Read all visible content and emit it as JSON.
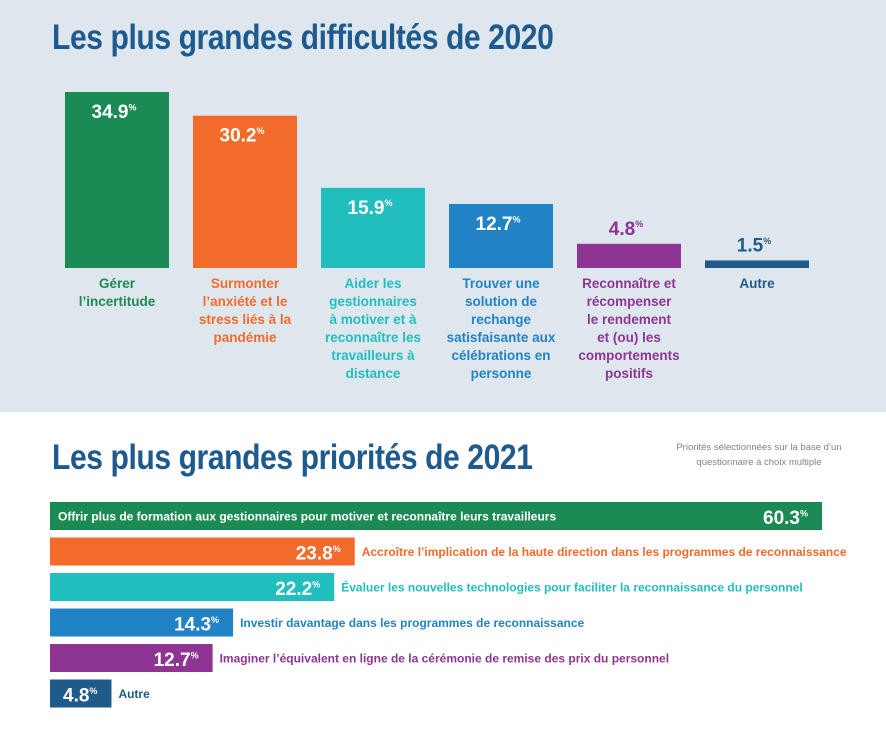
{
  "colors": {
    "green": "#1c8a55",
    "orange": "#f26b2a",
    "teal": "#22bdbd",
    "blue": "#2183c4",
    "purple": "#8e3594",
    "navy": "#1f5b8a",
    "title": "#1e5a8e"
  },
  "chart_data": [
    {
      "type": "bar",
      "orientation": "vertical",
      "title": "Les plus grandes difficultés de 2020",
      "unit": "%",
      "categories": [
        [
          "Gérer",
          "l’incertitude"
        ],
        [
          "Surmonter",
          "l’anxiété et le",
          "stress liés à la",
          "pandémie"
        ],
        [
          "Aider les",
          "gestionnaires",
          "à motiver et à",
          "reconnaître les",
          "travailleurs à",
          "distance"
        ],
        [
          "Trouver une",
          "solution de",
          "rechange",
          "satisfaisante aux",
          "célébrations en",
          "personne"
        ],
        [
          "Reconnaître et",
          "récompenser",
          "le rendement",
          "et (ou) les",
          "comportements",
          "positifs"
        ],
        [
          "Autre"
        ]
      ],
      "values": [
        34.9,
        30.2,
        15.9,
        12.7,
        4.8,
        1.5
      ],
      "colors": [
        "green",
        "orange",
        "teal",
        "blue",
        "purple",
        "navy"
      ]
    },
    {
      "type": "bar",
      "orientation": "horizontal",
      "title": "Les plus grandes priorités de 2021",
      "subtitle": "Priorités sélectionnées sur la base d’un questionnaire à choix multiple",
      "unit": "%",
      "categories": [
        "Offrir plus de formation aux gestionnaires pour motiver et reconnaître leurs travailleurs",
        "Accroître l’implication de la haute direction dans les programmes de reconnaissance",
        "Évaluer les nouvelles technologies pour faciliter la reconnaissance du personnel",
        "Investir davantage dans les programmes de reconnaissance",
        "Imaginer l’équivalent en ligne de la cérémonie de remise des prix du personnel",
        "Autre"
      ],
      "values": [
        60.3,
        23.8,
        22.2,
        14.3,
        12.7,
        4.8
      ],
      "colors": [
        "green",
        "orange",
        "teal",
        "blue",
        "purple",
        "navy"
      ]
    }
  ]
}
